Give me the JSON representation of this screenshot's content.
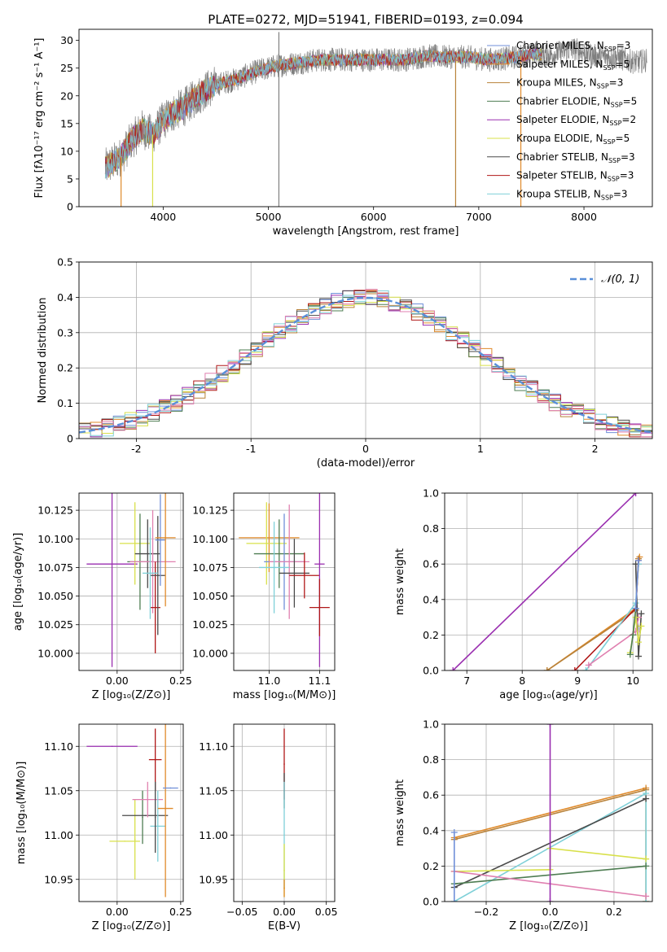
{
  "title": "PLATE=0272, MJD=51941, FIBERID=0193, z=0.094",
  "colors": {
    "Chabrier MILES": "#6f8fd8",
    "Salpeter MILES": "#e08a2a",
    "Kroupa MILES": "#b8823a",
    "Chabrier ELODIE": "#4e7d52",
    "Salpeter ELODIE": "#9a2fb0",
    "Kroupa ELODIE": "#d8e04a",
    "Chabrier STELIB": "#4a4a4a",
    "Salpeter STELIB": "#b01818",
    "Kroupa STELIB": "#7fd0d8",
    "pink": "#e080b0",
    "gauss": "#5a8fd8"
  },
  "chart_data": [
    {
      "type": "line",
      "name": "spectrum",
      "xlabel": "wavelength [Angstrom, rest frame]",
      "ylabel": "Flux [fλ10⁻¹⁷ erg cm⁻² s⁻¹ A⁻¹]",
      "xlim": [
        3200,
        8650
      ],
      "ylim": [
        0,
        32
      ],
      "xticks": [
        4000,
        5000,
        6000,
        7000,
        8000
      ],
      "yticks": [
        0,
        5,
        10,
        15,
        20,
        25,
        30
      ],
      "x_range": [
        3450,
        8600
      ],
      "legend_position": "right",
      "legend": [
        {
          "model": "Chabrier MILES",
          "n": "3"
        },
        {
          "model": "Salpeter MILES",
          "n": "5"
        },
        {
          "model": "Kroupa MILES",
          "n": "3"
        },
        {
          "model": "Chabrier ELODIE",
          "n": "5"
        },
        {
          "model": "Salpeter ELODIE",
          "n": "2"
        },
        {
          "model": "Kroupa ELODIE",
          "n": "5"
        },
        {
          "model": "Chabrier STELIB",
          "n": "3"
        },
        {
          "model": "Salpeter STELIB",
          "n": "3"
        },
        {
          "model": "Kroupa STELIB",
          "n": "3"
        }
      ],
      "legend_sub": "SSP",
      "envelope": {
        "x": [
          3450,
          3600,
          3700,
          3800,
          3900,
          4000,
          4100,
          4200,
          4300,
          4400,
          4500,
          4700,
          4900,
          5100,
          5300,
          5500,
          5700,
          5900,
          6100,
          6300,
          6500,
          6700,
          6900,
          7100,
          7300,
          7500,
          7700,
          7900,
          8100,
          8300,
          8500,
          8600
        ],
        "y": [
          7,
          9,
          12,
          14,
          13,
          15.5,
          17,
          18,
          19.5,
          21,
          22,
          23,
          24.5,
          25.5,
          26,
          26.5,
          26.5,
          26.5,
          26.5,
          26.5,
          27.2,
          27,
          27,
          26.5,
          26.8,
          27.5,
          27.5,
          28.5,
          27.2,
          27,
          26,
          26.5
        ]
      },
      "drops": [
        {
          "x": 3600,
          "model": "Salpeter MILES"
        },
        {
          "x": 3900,
          "model": "Kroupa ELODIE"
        },
        {
          "x": 5100,
          "model": "Chabrier STELIB",
          "up": 31.5
        },
        {
          "x": 6780,
          "model": "Kroupa MILES"
        },
        {
          "x": 7400,
          "model": "Salpeter MILES"
        }
      ]
    },
    {
      "type": "step",
      "name": "residuals",
      "xlabel": "(data-model)/error",
      "ylabel": "Normed distribution",
      "xlim": [
        -2.5,
        2.5
      ],
      "ylim": [
        0,
        0.5
      ],
      "xticks": [
        -2,
        -1,
        0,
        1,
        2
      ],
      "yticks": [
        0.0,
        0.1,
        0.2,
        0.3,
        0.4,
        0.5
      ],
      "legend_label": "𝒩(0, 1)",
      "legend_position": "upper right",
      "bin_width": 0.1,
      "series_models": [
        "Chabrier MILES",
        "Salpeter MILES",
        "Kroupa MILES",
        "Chabrier ELODIE",
        "Salpeter ELODIE",
        "Kroupa ELODIE",
        "Chabrier STELIB",
        "Salpeter STELIB",
        "Kroupa STELIB",
        "pink"
      ]
    },
    {
      "type": "errorbar",
      "name": "age_vs_Z",
      "xlabel": "Z [log₁₀(Z/Z⊙)]",
      "ylabel": "age  [log₁₀(age/yr)]",
      "xlim": [
        -0.15,
        0.26
      ],
      "ylim": [
        9.985,
        10.14
      ],
      "xticks": [
        0.0,
        0.25
      ],
      "xtick_labels": [
        "0.00",
        "0.25"
      ],
      "yticks": [
        10.0,
        10.025,
        10.05,
        10.075,
        10.1,
        10.125
      ],
      "ytick_labels": [
        "10.000",
        "10.025",
        "10.050",
        "10.075",
        "10.100",
        "10.125"
      ],
      "points": [
        {
          "x": -0.02,
          "y": 10.078,
          "xerr": 0.1,
          "yerr": 0.09,
          "c": "Salpeter ELODIE"
        },
        {
          "x": 0.07,
          "y": 10.096,
          "xerr": 0.06,
          "yerr": 0.036,
          "c": "Kroupa ELODIE"
        },
        {
          "x": 0.09,
          "y": 10.08,
          "xerr": 0.05,
          "yerr": 0.042,
          "c": "Chabrier ELODIE"
        },
        {
          "x": 0.12,
          "y": 10.087,
          "xerr": 0.05,
          "yerr": 0.03,
          "c": "Chabrier STELIB"
        },
        {
          "x": 0.14,
          "y": 10.08,
          "xerr": 0.09,
          "yerr": 0.045,
          "c": "pink"
        },
        {
          "x": 0.15,
          "y": 10.04,
          "xerr": 0.02,
          "yerr": 0.04,
          "c": "Salpeter STELIB"
        },
        {
          "x": 0.16,
          "y": 10.068,
          "xerr": 0.03,
          "yerr": 0.052,
          "c": "Chabrier STELIB"
        },
        {
          "x": 0.17,
          "y": 10.099,
          "xerr": 0.02,
          "yerr": 0.04,
          "c": "Chabrier MILES"
        },
        {
          "x": 0.19,
          "y": 10.101,
          "xerr": 0.04,
          "yerr": 0.06,
          "c": "Salpeter MILES"
        },
        {
          "x": 0.13,
          "y": 10.07,
          "xerr": 0.03,
          "yerr": 0.04,
          "c": "Kroupa STELIB"
        }
      ]
    },
    {
      "type": "errorbar",
      "name": "age_vs_mass",
      "xlabel": "mass [log₁₀(M/M⊙)]",
      "ylabel": "",
      "xlim": [
        10.93,
        11.13
      ],
      "ylim": [
        9.985,
        10.14
      ],
      "xticks": [
        11.0,
        11.1
      ],
      "xtick_labels": [
        "11.0",
        "11.1"
      ],
      "yticks": [
        10.0,
        10.025,
        10.05,
        10.075,
        10.1,
        10.125
      ],
      "ytick_labels": [
        "10.000",
        "10.025",
        "10.050",
        "10.075",
        "10.100",
        "10.125"
      ],
      "points": [
        {
          "x": 11.0,
          "y": 10.101,
          "xerr": 0.06,
          "yerr": 0.03,
          "c": "Salpeter MILES"
        },
        {
          "x": 10.995,
          "y": 10.096,
          "xerr": 0.04,
          "yerr": 0.036,
          "c": "Kroupa ELODIE"
        },
        {
          "x": 11.02,
          "y": 10.087,
          "xerr": 0.05,
          "yerr": 0.03,
          "c": "Chabrier ELODIE"
        },
        {
          "x": 11.03,
          "y": 10.08,
          "xerr": 0.04,
          "yerr": 0.042,
          "c": "Chabrier MILES"
        },
        {
          "x": 11.04,
          "y": 10.08,
          "xerr": 0.04,
          "yerr": 0.05,
          "c": "pink"
        },
        {
          "x": 11.05,
          "y": 10.07,
          "xerr": 0.03,
          "yerr": 0.03,
          "c": "Chabrier STELIB"
        },
        {
          "x": 11.07,
          "y": 10.068,
          "xerr": 0.03,
          "yerr": 0.02,
          "c": "Salpeter STELIB"
        },
        {
          "x": 11.1,
          "y": 10.078,
          "xerr": 0.01,
          "yerr": 0.09,
          "c": "Salpeter ELODIE"
        },
        {
          "x": 11.1,
          "y": 10.04,
          "xerr": 0.02,
          "yerr": 0.025,
          "c": "Salpeter STELIB"
        },
        {
          "x": 11.01,
          "y": 10.075,
          "xerr": 0.03,
          "yerr": 0.04,
          "c": "Kroupa STELIB"
        }
      ]
    },
    {
      "type": "line",
      "name": "mass_weight_vs_age",
      "xlabel": "age  [log₁₀(age/yr)]",
      "ylabel": "mass weight",
      "xlim": [
        6.6,
        10.35
      ],
      "ylim": [
        0,
        1
      ],
      "xticks": [
        7,
        8,
        9,
        10
      ],
      "yticks": [
        0.0,
        0.2,
        0.4,
        0.6,
        0.8,
        1.0
      ],
      "ytick_labels": [
        "0.0",
        "0.2",
        "0.4",
        "0.6",
        "0.8",
        "1.0"
      ],
      "lines": [
        {
          "c": "Salpeter ELODIE",
          "x": [
            6.75,
            10.05
          ],
          "y": [
            0.0,
            1.0
          ]
        },
        {
          "c": "Salpeter MILES",
          "x": [
            8.45,
            10.05,
            10.1,
            10.12
          ],
          "y": [
            0.0,
            0.35,
            0.6,
            0.64
          ]
        },
        {
          "c": "Kroupa MILES",
          "x": [
            8.45,
            10.05,
            10.1
          ],
          "y": [
            0.0,
            0.34,
            0.63
          ]
        },
        {
          "c": "Salpeter STELIB",
          "x": [
            8.95,
            10.05,
            10.1
          ],
          "y": [
            0.0,
            0.35,
            0.62
          ]
        },
        {
          "c": "Kroupa STELIB",
          "x": [
            9.15,
            10.05,
            10.1
          ],
          "y": [
            0.0,
            0.38,
            0.6
          ]
        },
        {
          "c": "Chabrier STELIB",
          "x": [
            10.05,
            10.1,
            10.15
          ],
          "y": [
            0.6,
            0.08,
            0.32
          ]
        },
        {
          "c": "pink",
          "x": [
            9.2,
            10.05,
            10.1
          ],
          "y": [
            0.03,
            0.22,
            0.3
          ]
        },
        {
          "c": "Kroupa ELODIE",
          "x": [
            9.95,
            10.05,
            10.1,
            10.15
          ],
          "y": [
            0.1,
            0.3,
            0.16,
            0.25
          ]
        },
        {
          "c": "Chabrier ELODIE",
          "x": [
            9.95,
            10.0,
            10.05
          ],
          "y": [
            0.09,
            0.2,
            0.35
          ]
        },
        {
          "c": "Chabrier MILES",
          "x": [
            10.05,
            10.1
          ],
          "y": [
            0.35,
            0.62
          ]
        }
      ]
    },
    {
      "type": "errorbar",
      "name": "mass_vs_Z",
      "xlabel": "Z [log₁₀(Z/Z⊙)]",
      "ylabel": "mass [log₁₀(M/M⊙)]",
      "xlim": [
        -0.15,
        0.26
      ],
      "ylim": [
        10.925,
        11.125
      ],
      "xticks": [
        0.0,
        0.25
      ],
      "xtick_labels": [
        "0.00",
        "0.25"
      ],
      "yticks": [
        10.95,
        11.0,
        11.05,
        11.1
      ],
      "ytick_labels": [
        "10.95",
        "11.00",
        "11.05",
        "11.10"
      ],
      "points": [
        {
          "x": -0.02,
          "y": 11.1,
          "xerr": 0.1,
          "yerr": 0.0,
          "c": "Salpeter ELODIE"
        },
        {
          "x": 0.03,
          "y": 10.993,
          "xerr": 0.06,
          "yerr": 0.0,
          "c": "Kroupa ELODIE"
        },
        {
          "x": 0.07,
          "y": 10.995,
          "xerr": 0.0,
          "yerr": 0.045,
          "c": "Kroupa ELODIE"
        },
        {
          "x": 0.1,
          "y": 11.02,
          "xerr": 0.0,
          "yerr": 0.03,
          "c": "Chabrier ELODIE"
        },
        {
          "x": 0.11,
          "y": 11.022,
          "xerr": 0.09,
          "yerr": 0.0,
          "c": "Chabrier STELIB"
        },
        {
          "x": 0.12,
          "y": 11.04,
          "xerr": 0.06,
          "yerr": 0.02,
          "c": "pink"
        },
        {
          "x": 0.15,
          "y": 11.085,
          "xerr": 0.025,
          "yerr": 0.035,
          "c": "Salpeter STELIB"
        },
        {
          "x": 0.16,
          "y": 11.01,
          "xerr": 0.03,
          "yerr": 0.04,
          "c": "Kroupa STELIB"
        },
        {
          "x": 0.19,
          "y": 11.03,
          "xerr": 0.03,
          "yerr": 0.1,
          "c": "Salpeter MILES"
        },
        {
          "x": 0.21,
          "y": 11.053,
          "xerr": 0.03,
          "yerr": 0.0,
          "c": "Chabrier MILES"
        },
        {
          "x": 0.15,
          "y": 11.02,
          "xerr": 0.0,
          "yerr": 0.04,
          "c": "Chabrier STELIB"
        }
      ]
    },
    {
      "type": "errorbar",
      "name": "mass_vs_EBV",
      "xlabel": "E(B-V)",
      "ylabel": "",
      "xlim": [
        -0.06,
        0.06
      ],
      "ylim": [
        10.925,
        11.125
      ],
      "xticks": [
        -0.05,
        0.0,
        0.05
      ],
      "xtick_labels": [
        "−0.05",
        "0.00",
        "0.05"
      ],
      "yticks": [
        10.95,
        11.0,
        11.05,
        11.1
      ],
      "ytick_labels": [
        "10.95",
        "11.00",
        "11.05",
        "11.10"
      ],
      "points": [
        {
          "x": 0.0,
          "y": 11.08,
          "xerr": 0.0,
          "yerr": 0.04,
          "c": "Salpeter STELIB"
        },
        {
          "x": 0.0,
          "y": 11.05,
          "xerr": 0.0,
          "yerr": 0.02,
          "c": "Chabrier STELIB"
        },
        {
          "x": 0.0,
          "y": 11.0,
          "xerr": 0.0,
          "yerr": 0.06,
          "c": "Kroupa STELIB"
        },
        {
          "x": 0.0,
          "y": 10.96,
          "xerr": 0.0,
          "yerr": 0.03,
          "c": "Kroupa ELODIE"
        },
        {
          "x": 0.0,
          "y": 10.94,
          "xerr": 0.0,
          "yerr": 0.01,
          "c": "Salpeter MILES"
        }
      ]
    },
    {
      "type": "line",
      "name": "mass_weight_vs_Z",
      "xlabel": "Z [log₁₀(Z/Z⊙)]",
      "ylabel": "mass weight",
      "xlim": [
        -0.33,
        0.32
      ],
      "ylim": [
        0,
        1
      ],
      "xticks": [
        -0.2,
        0.0,
        0.2
      ],
      "xtick_labels": [
        "−0.2",
        "0.0",
        "0.2"
      ],
      "yticks": [
        0.0,
        0.2,
        0.4,
        0.6,
        0.8,
        1.0
      ],
      "ytick_labels": [
        "0.0",
        "0.2",
        "0.4",
        "0.6",
        "0.8",
        "1.0"
      ],
      "lines": [
        {
          "c": "Salpeter MILES",
          "x": [
            -0.3,
            0.3,
            0.3
          ],
          "y": [
            0.36,
            0.64,
            0.0
          ]
        },
        {
          "c": "Kroupa MILES",
          "x": [
            -0.3,
            0.3,
            0.3
          ],
          "y": [
            0.35,
            0.63,
            0.0
          ]
        },
        {
          "c": "Kroupa STELIB",
          "x": [
            -0.3,
            0.3,
            0.3
          ],
          "y": [
            0.0,
            0.61,
            0.0
          ]
        },
        {
          "c": "Chabrier STELIB",
          "x": [
            -0.3,
            0.3
          ],
          "y": [
            0.08,
            0.58
          ]
        },
        {
          "c": "Chabrier ELODIE",
          "x": [
            -0.3,
            0.3
          ],
          "y": [
            0.1,
            0.2
          ]
        },
        {
          "c": "Kroupa ELODIE",
          "x": [
            -0.3,
            0.0,
            0.0,
            0.3
          ],
          "y": [
            0.17,
            0.18,
            0.3,
            0.24
          ]
        },
        {
          "c": "pink",
          "x": [
            -0.3,
            0.3
          ],
          "y": [
            0.17,
            0.03
          ]
        },
        {
          "c": "Salpeter ELODIE",
          "x": [
            0.0,
            0.0
          ],
          "y": [
            0.0,
            1.0
          ]
        },
        {
          "c": "Chabrier MILES",
          "x": [
            -0.3,
            -0.3
          ],
          "y": [
            0.0,
            0.39
          ]
        }
      ]
    }
  ]
}
